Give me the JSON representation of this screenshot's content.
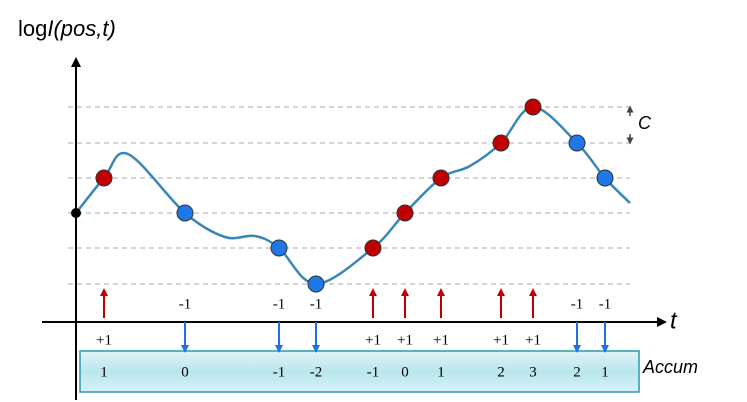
{
  "title": {
    "prefix": "log",
    "italic": "I(pos,t)"
  },
  "x_axis_label": "t",
  "threshold_label": "C",
  "accum_label": "Accum",
  "events": [
    {
      "label": "+1",
      "accum": 1
    },
    {
      "label": "-1",
      "accum": 0
    },
    {
      "label": "-1",
      "accum": -1
    },
    {
      "label": "-1",
      "accum": -2
    },
    {
      "label": "+1",
      "accum": -1
    },
    {
      "label": "+1",
      "accum": 0
    },
    {
      "label": "+1",
      "accum": 1
    },
    {
      "label": "+1",
      "accum": 2
    },
    {
      "label": "+1",
      "accum": 3
    },
    {
      "label": "-1",
      "accum": 2
    },
    {
      "label": "-1",
      "accum": 1
    }
  ]
}
